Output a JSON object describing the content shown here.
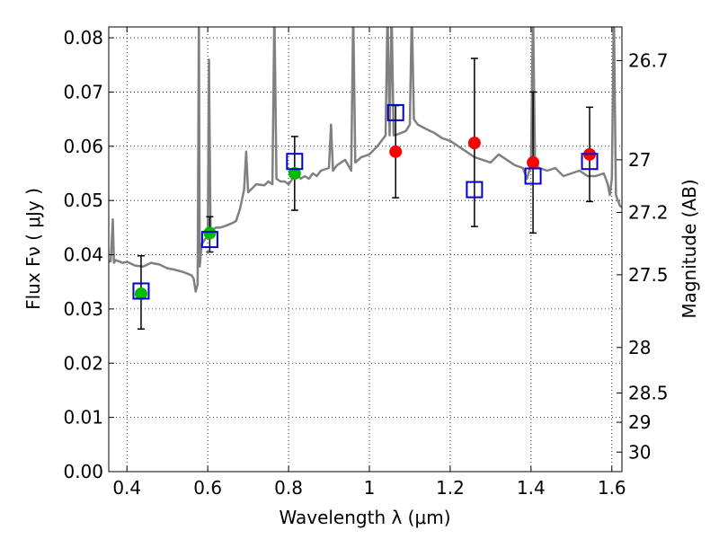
{
  "chart_data": {
    "type": "scatter",
    "xlabel": "Wavelength  λ (μm)",
    "ylabel": "Flux  Fν ( μJy )",
    "y2label": "Magnitude (AB)",
    "xlim": [
      0.355,
      1.625
    ],
    "ylim": [
      0.0,
      0.082
    ],
    "grid": true,
    "x_ticks": [
      0.4,
      0.6,
      0.8,
      1.0,
      1.2,
      1.4,
      1.6
    ],
    "x_tick_labels": [
      "0.4",
      "0.6",
      "0.8",
      "1",
      "1.2",
      "1.4",
      "1.6"
    ],
    "y_ticks": [
      0.0,
      0.01,
      0.02,
      0.03,
      0.04,
      0.05,
      0.06,
      0.07,
      0.08
    ],
    "y_tick_labels": [
      "0.00",
      "0.01",
      "0.02",
      "0.03",
      "0.04",
      "0.05",
      "0.06",
      "0.07",
      "0.08"
    ],
    "y2_ticks": [
      {
        "label": "26.7",
        "flux": 0.0758
      },
      {
        "label": "27",
        "flux": 0.0575
      },
      {
        "label": "27.2",
        "flux": 0.0478
      },
      {
        "label": "27.5",
        "flux": 0.0363
      },
      {
        "label": "28",
        "flux": 0.0229
      },
      {
        "label": "28.5",
        "flux": 0.0145
      },
      {
        "label": "29",
        "flux": 0.0091
      },
      {
        "label": "30",
        "flux": 0.0036
      }
    ],
    "series": [
      {
        "marker": "circle",
        "color": "#00bb00",
        "x": [
          0.435,
          0.605,
          0.815
        ],
        "y": [
          0.0328,
          0.044,
          0.055
        ]
      },
      {
        "marker": "circle",
        "color": "#ff0000",
        "x": [
          1.065,
          1.26,
          1.405,
          1.545
        ],
        "y": [
          0.059,
          0.0606,
          0.057,
          0.0585
        ]
      },
      {
        "marker": "open-square",
        "color": "#0000cc",
        "x": [
          0.435,
          0.605,
          0.815,
          1.065,
          1.26,
          1.405,
          1.545
        ],
        "y": [
          0.0333,
          0.0428,
          0.0572,
          0.0662,
          0.052,
          0.0545,
          0.0572
        ]
      },
      {
        "marker": "errorbar",
        "color": "#000000",
        "x": [
          0.435,
          0.605,
          0.815,
          1.065,
          1.26,
          1.405,
          1.545
        ],
        "y_low": [
          0.0263,
          0.0405,
          0.0482,
          0.0505,
          0.0452,
          0.044,
          0.0498
        ],
        "y_high": [
          0.0398,
          0.047,
          0.0618,
          0.0675,
          0.0762,
          0.07,
          0.0672
        ]
      },
      {
        "type": "line",
        "color": "#808080",
        "x": [
          0.355,
          0.36,
          0.365,
          0.368,
          0.372,
          0.38,
          0.39,
          0.4,
          0.42,
          0.44,
          0.46,
          0.48,
          0.5,
          0.52,
          0.54,
          0.55,
          0.56,
          0.565,
          0.57,
          0.575,
          0.578,
          0.58,
          0.585,
          0.59,
          0.595,
          0.6,
          0.603,
          0.607,
          0.61,
          0.62,
          0.63,
          0.64,
          0.65,
          0.66,
          0.67,
          0.68,
          0.69,
          0.695,
          0.7,
          0.72,
          0.74,
          0.75,
          0.76,
          0.765,
          0.77,
          0.78,
          0.79,
          0.8,
          0.81,
          0.82,
          0.83,
          0.84,
          0.85,
          0.86,
          0.87,
          0.88,
          0.9,
          0.905,
          0.91,
          0.92,
          0.94,
          0.955,
          0.96,
          0.965,
          0.98,
          1.0,
          1.02,
          1.04,
          1.045,
          1.05,
          1.055,
          1.06,
          1.07,
          1.08,
          1.09,
          1.1,
          1.105,
          1.11,
          1.12,
          1.14,
          1.16,
          1.18,
          1.2,
          1.22,
          1.24,
          1.26,
          1.28,
          1.3,
          1.32,
          1.34,
          1.36,
          1.38,
          1.39,
          1.4,
          1.405,
          1.41,
          1.42,
          1.44,
          1.46,
          1.48,
          1.5,
          1.52,
          1.54,
          1.56,
          1.58,
          1.59,
          1.595,
          1.6,
          1.605,
          1.61,
          1.62,
          1.625
        ],
        "y": [
          0.0388,
          0.0388,
          0.0465,
          0.0385,
          0.039,
          0.0388,
          0.0385,
          0.0387,
          0.038,
          0.0378,
          0.0385,
          0.0382,
          0.0375,
          0.0372,
          0.0368,
          0.0365,
          0.0362,
          0.0356,
          0.0332,
          0.0345,
          0.085,
          0.0378,
          0.042,
          0.0425,
          0.043,
          0.0432,
          0.076,
          0.044,
          0.0445,
          0.045,
          0.045,
          0.0452,
          0.0455,
          0.0458,
          0.0462,
          0.0485,
          0.052,
          0.059,
          0.0515,
          0.053,
          0.0528,
          0.0535,
          0.053,
          0.085,
          0.054,
          0.0535,
          0.0535,
          0.053,
          0.054,
          0.055,
          0.054,
          0.0545,
          0.054,
          0.055,
          0.0545,
          0.0555,
          0.056,
          0.064,
          0.0555,
          0.0565,
          0.0575,
          0.0555,
          0.085,
          0.057,
          0.058,
          0.0585,
          0.06,
          0.062,
          0.085,
          0.062,
          0.085,
          0.062,
          0.0622,
          0.0625,
          0.0628,
          0.064,
          0.085,
          0.065,
          0.064,
          0.0632,
          0.0625,
          0.0615,
          0.061,
          0.06,
          0.059,
          0.058,
          0.0575,
          0.057,
          0.0585,
          0.0575,
          0.0565,
          0.056,
          0.054,
          0.0565,
          0.085,
          0.057,
          0.056,
          0.0555,
          0.056,
          0.0545,
          0.055,
          0.0555,
          0.0545,
          0.0545,
          0.055,
          0.053,
          0.051,
          0.054,
          0.085,
          0.051,
          0.049,
          0.0488
        ]
      }
    ]
  }
}
